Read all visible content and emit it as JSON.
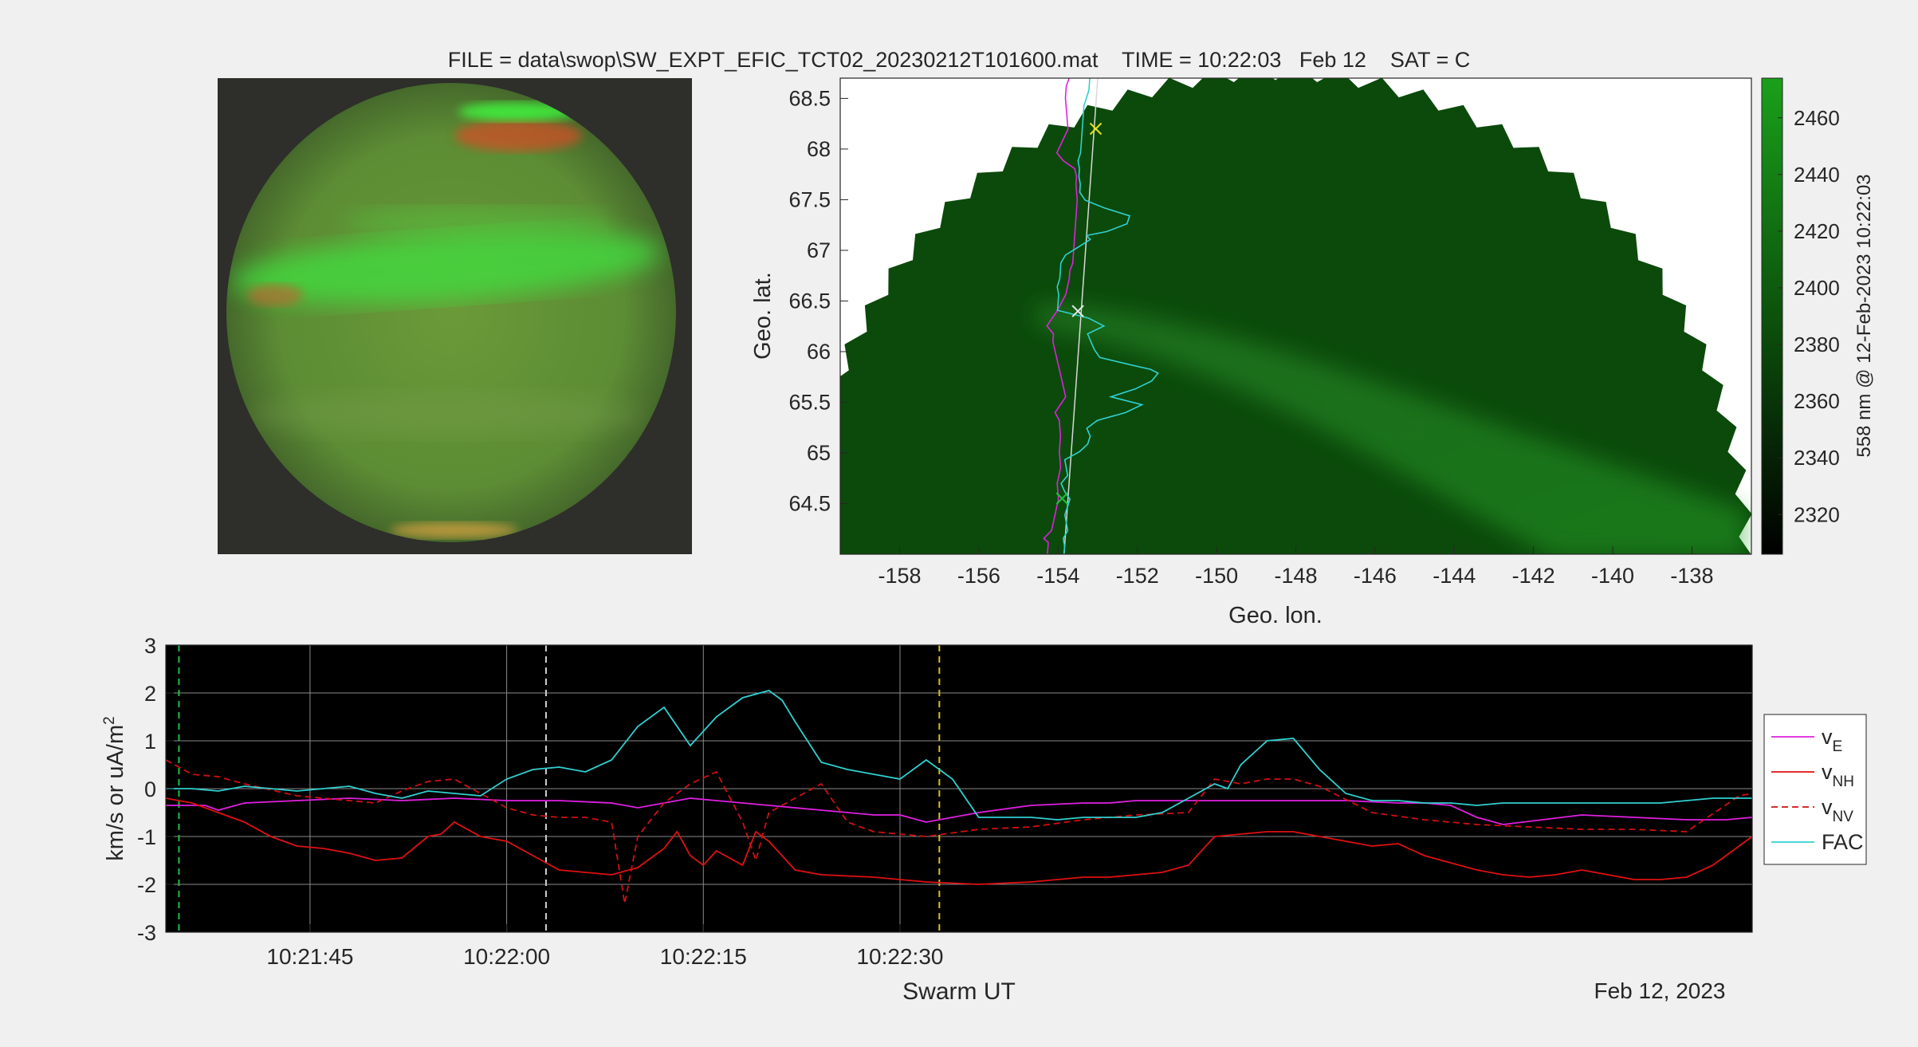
{
  "figure": {
    "title": "FILE = data\\swop\\SW_EXPT_EFIC_TCT02_20230212T101600.mat    TIME = 10:22:03   Feb 12    SAT = C"
  },
  "colors": {
    "figure_bg": "#f0f0f0",
    "v_e": "#e020e0",
    "v_nh": "#e01010",
    "v_nv": "#d01010",
    "fac": "#30d0d0",
    "track": "#d8d8d8",
    "aurora_green": "#1e8c1e",
    "marker_yellow": "#e8e020",
    "marker_green": "#20c040",
    "grid": "#8a8a8a"
  },
  "chart_data": [
    {
      "type": "image",
      "name": "all-sky camera image",
      "description_hidden": true
    },
    {
      "type": "heatmap",
      "name": "geographic projection",
      "xlabel": "Geo. lon.",
      "ylabel": "Geo. lat.",
      "xlim": [
        -159.5,
        -136.5
      ],
      "ylim": [
        64.0,
        68.7
      ],
      "xticks": [
        -158,
        -156,
        -154,
        -152,
        -150,
        -148,
        -146,
        -144,
        -142,
        -140,
        -138
      ],
      "yticks": [
        64.5,
        65,
        65.5,
        66,
        66.5,
        67,
        67.5,
        68,
        68.5
      ],
      "colorbar": {
        "label": "558 nm @ 12-Feb-2023 10:22:03",
        "range": [
          2306,
          2474
        ],
        "ticks": [
          2320,
          2340,
          2360,
          2380,
          2400,
          2420,
          2440,
          2460
        ]
      },
      "track": {
        "lon": [
          -153.85,
          -153.0
        ],
        "lat": [
          64.0,
          68.7
        ]
      },
      "markers": [
        {
          "lon": -153.05,
          "lat": 68.2,
          "color": "yellow"
        },
        {
          "lon": -153.5,
          "lat": 66.4,
          "color": "white"
        },
        {
          "lon": -153.9,
          "lat": 64.55,
          "color": "green"
        }
      ]
    },
    {
      "type": "line",
      "name": "time series",
      "xlabel": "Swarm UT",
      "ylabel": "km/s or uA/m^2",
      "date_label": "Feb 12, 2023",
      "xlim": [
        "10:21:34",
        "10:22:35"
      ],
      "ylim": [
        -3,
        3
      ],
      "yticks": [
        -3,
        -2,
        -1,
        0,
        1,
        2,
        3
      ],
      "xticks": [
        "10:21:45",
        "10:22:00",
        "10:22:15",
        "10:22:30"
      ],
      "legend_location": "right",
      "vlines": [
        {
          "time": "10:21:35",
          "color": "green"
        },
        {
          "time": "10:22:03",
          "color": "white"
        },
        {
          "time": "10:22:33",
          "color": "yellow"
        }
      ],
      "series": [
        {
          "name": "v_E",
          "x": [
            34,
            37,
            38,
            40,
            44,
            48,
            52,
            56,
            60,
            64,
            68,
            70,
            72,
            74,
            76,
            80,
            84,
            88,
            90,
            92,
            96,
            100,
            104,
            106,
            108,
            112,
            116,
            120,
            124,
            128,
            130,
            132,
            134,
            136,
            139,
            142,
            146,
            150,
            153,
            155
          ],
          "y": [
            -0.35,
            -0.35,
            -0.45,
            -0.3,
            -0.25,
            -0.2,
            -0.25,
            -0.2,
            -0.25,
            -0.25,
            -0.3,
            -0.4,
            -0.3,
            -0.2,
            -0.25,
            -0.35,
            -0.45,
            -0.55,
            -0.55,
            -0.7,
            -0.5,
            -0.35,
            -0.3,
            -0.3,
            -0.25,
            -0.25,
            -0.25,
            -0.25,
            -0.25,
            -0.3,
            -0.3,
            -0.35,
            -0.6,
            -0.75,
            -0.65,
            -0.55,
            -0.6,
            -0.65,
            -0.65,
            -0.6
          ]
        },
        {
          "name": "v_NH",
          "x": [
            34,
            36,
            38,
            40,
            42,
            44,
            46,
            48,
            50,
            52,
            54,
            55,
            56,
            58,
            60,
            62,
            64,
            66,
            68,
            70,
            72,
            73,
            74,
            75,
            76,
            78,
            79,
            80,
            82,
            84,
            88,
            92,
            96,
            100,
            104,
            106,
            108,
            110,
            112,
            114,
            116,
            118,
            120,
            122,
            124,
            126,
            128,
            130,
            132,
            134,
            136,
            138,
            140,
            142,
            144,
            146,
            148,
            150,
            152,
            154,
            155
          ],
          "y": [
            -0.2,
            -0.3,
            -0.5,
            -0.7,
            -1.0,
            -1.2,
            -1.25,
            -1.35,
            -1.5,
            -1.45,
            -1.0,
            -0.95,
            -0.7,
            -1.0,
            -1.1,
            -1.4,
            -1.7,
            -1.75,
            -1.8,
            -1.65,
            -1.25,
            -0.9,
            -1.4,
            -1.6,
            -1.3,
            -1.6,
            -0.9,
            -1.1,
            -1.7,
            -1.8,
            -1.85,
            -1.95,
            -2.0,
            -1.95,
            -1.85,
            -1.85,
            -1.8,
            -1.75,
            -1.6,
            -1.0,
            -0.95,
            -0.9,
            -0.9,
            -1.0,
            -1.1,
            -1.2,
            -1.15,
            -1.4,
            -1.55,
            -1.7,
            -1.8,
            -1.85,
            -1.8,
            -1.7,
            -1.8,
            -1.9,
            -1.9,
            -1.85,
            -1.6,
            -1.2,
            -1.0
          ]
        },
        {
          "name": "v_NV",
          "x": [
            34,
            36,
            38,
            40,
            44,
            48,
            50,
            52,
            54,
            56,
            58,
            60,
            62,
            64,
            66,
            68,
            69,
            70,
            72,
            74,
            76,
            78,
            79,
            80,
            82,
            84,
            86,
            88,
            90,
            92,
            96,
            100,
            104,
            108,
            112,
            114,
            116,
            118,
            120,
            122,
            126,
            130,
            134,
            138,
            142,
            146,
            150,
            154,
            155
          ],
          "y": [
            0.6,
            0.3,
            0.25,
            0.1,
            -0.15,
            -0.25,
            -0.3,
            -0.05,
            0.15,
            0.2,
            -0.1,
            -0.4,
            -0.55,
            -0.6,
            -0.6,
            -0.7,
            -2.4,
            -1.0,
            -0.3,
            0.1,
            0.35,
            -0.7,
            -1.5,
            -0.5,
            -0.2,
            0.1,
            -0.7,
            -0.9,
            -0.95,
            -1.0,
            -0.85,
            -0.8,
            -0.65,
            -0.55,
            -0.5,
            0.2,
            0.1,
            0.2,
            0.2,
            0.05,
            -0.5,
            -0.65,
            -0.75,
            -0.8,
            -0.85,
            -0.85,
            -0.9,
            -0.15,
            -0.1
          ]
        },
        {
          "name": "FAC",
          "x": [
            34,
            36,
            38,
            40,
            42,
            44,
            46,
            48,
            50,
            52,
            54,
            56,
            58,
            60,
            62,
            64,
            66,
            68,
            70,
            72,
            74,
            76,
            78,
            80,
            81,
            82,
            84,
            86,
            88,
            90,
            92,
            94,
            96,
            98,
            100,
            102,
            104,
            106,
            108,
            110,
            112,
            114,
            115,
            116,
            118,
            120,
            122,
            124,
            126,
            128,
            130,
            132,
            134,
            136,
            138,
            140,
            142,
            144,
            146,
            148,
            150,
            152,
            154,
            155
          ],
          "y": [
            0.0,
            0.0,
            -0.05,
            0.05,
            0.0,
            -0.05,
            0.0,
            0.05,
            -0.1,
            -0.2,
            -0.05,
            -0.1,
            -0.15,
            0.2,
            0.4,
            0.45,
            0.35,
            0.6,
            1.3,
            1.7,
            0.9,
            1.5,
            1.9,
            2.05,
            1.85,
            1.4,
            0.55,
            0.4,
            0.3,
            0.2,
            0.6,
            0.2,
            -0.6,
            -0.6,
            -0.6,
            -0.65,
            -0.6,
            -0.6,
            -0.6,
            -0.5,
            -0.2,
            0.1,
            0.0,
            0.5,
            1.0,
            1.05,
            0.4,
            -0.1,
            -0.25,
            -0.25,
            -0.3,
            -0.3,
            -0.35,
            -0.3,
            -0.3,
            -0.3,
            -0.3,
            -0.3,
            -0.3,
            -0.3,
            -0.25,
            -0.2,
            -0.2,
            -0.2
          ]
        }
      ]
    }
  ],
  "axes2": {
    "xlabel": "Geo. lon.",
    "ylabel": "Geo. lat.",
    "xticks": [
      "-158",
      "-156",
      "-154",
      "-152",
      "-150",
      "-148",
      "-146",
      "-144",
      "-142",
      "-140",
      "-138"
    ],
    "yticks": [
      "64.5",
      "65",
      "65.5",
      "66",
      "66.5",
      "67",
      "67.5",
      "68",
      "68.5"
    ],
    "cbar_label": "558 nm @ 12-Feb-2023 10:22:03",
    "cbar_ticks": [
      "2320",
      "2340",
      "2360",
      "2380",
      "2400",
      "2420",
      "2440",
      "2460"
    ]
  },
  "axes3": {
    "xlabel": "Swarm UT",
    "ylabel": "km/s or uA/m",
    "ylabel_sup": "2",
    "date_label": "Feb 12, 2023",
    "xticks": [
      "10:21:45",
      "10:22:00",
      "10:22:15",
      "10:22:30"
    ],
    "yticks": [
      "3",
      "2",
      "1",
      "0",
      "-1",
      "-2",
      "-3"
    ],
    "legend": [
      {
        "base": "v",
        "sub": "E"
      },
      {
        "base": "v",
        "sub": "NH"
      },
      {
        "base": "v",
        "sub": "NV"
      },
      {
        "base": "FAC",
        "sub": ""
      }
    ]
  }
}
